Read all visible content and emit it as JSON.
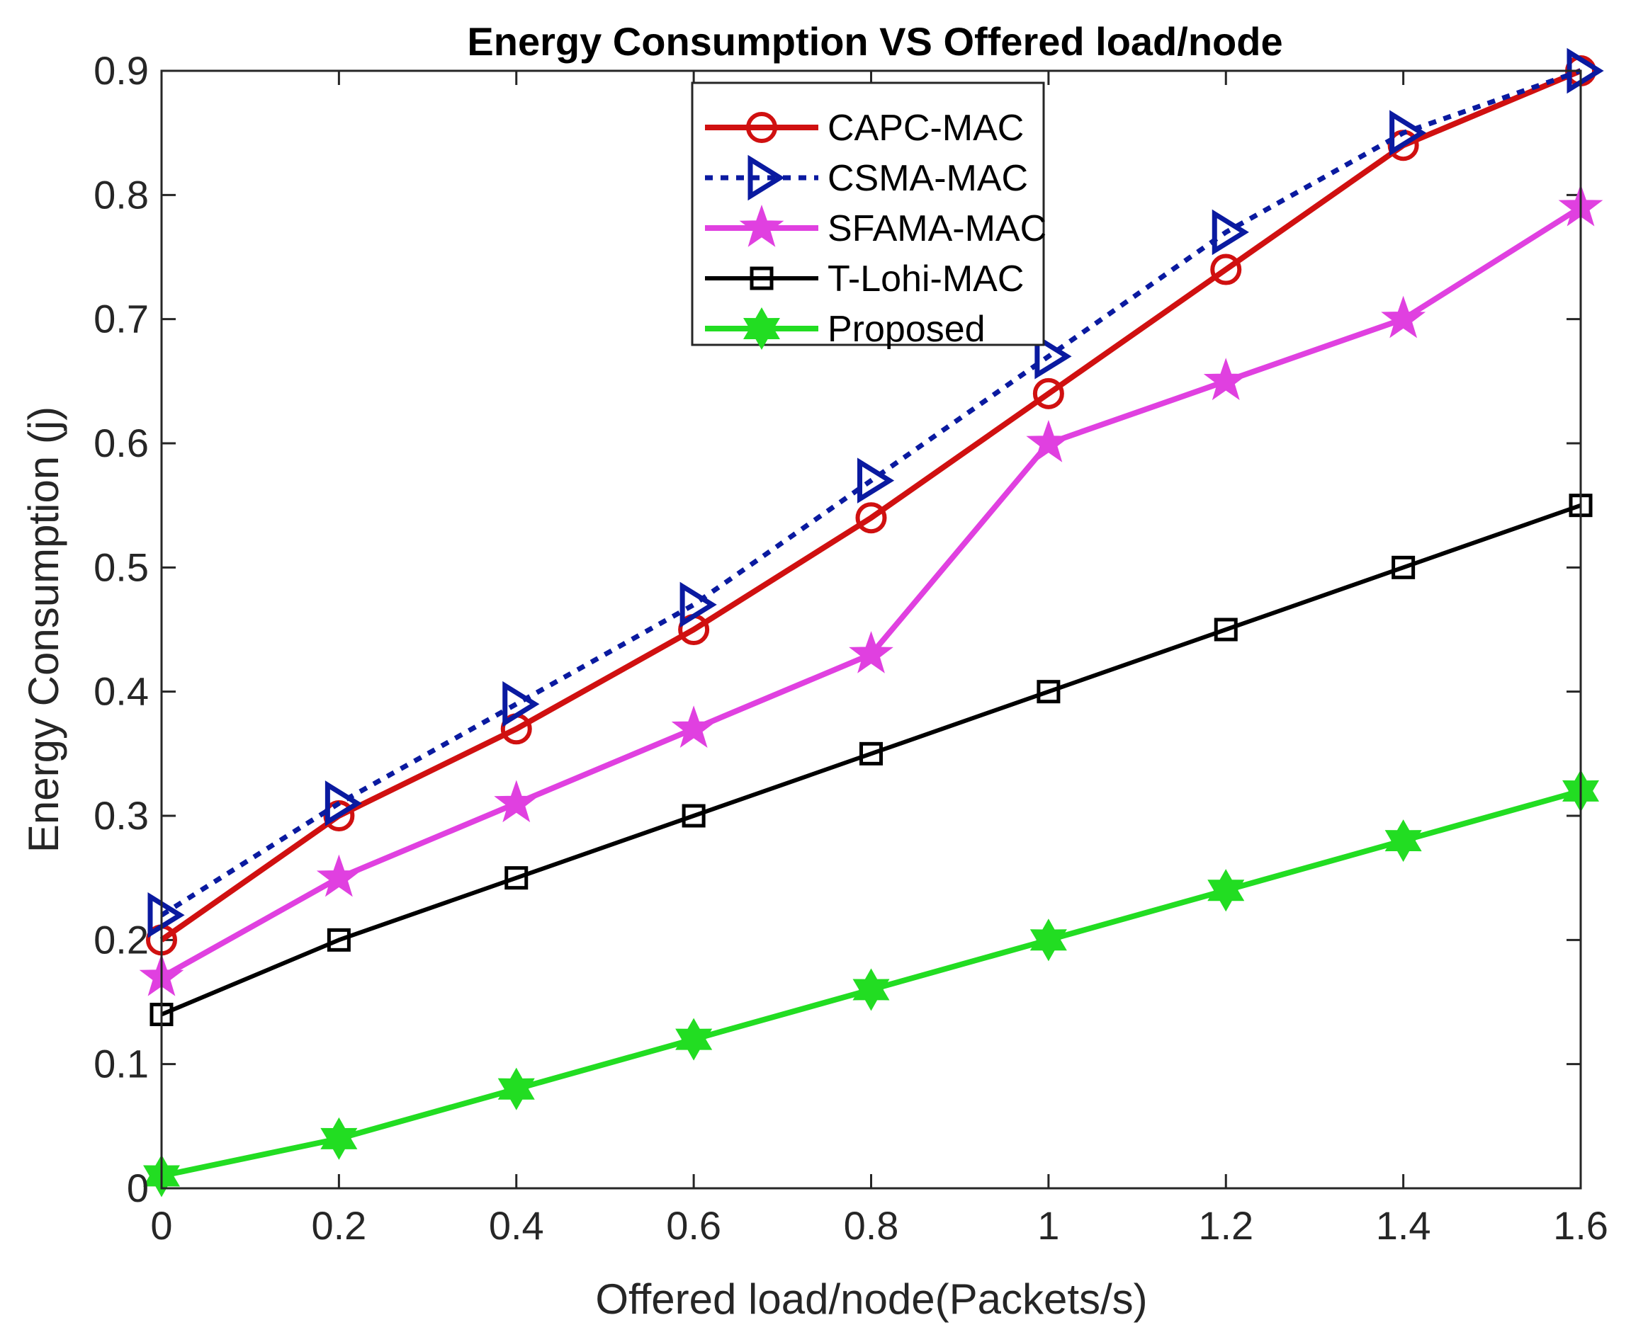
{
  "chart_data": {
    "type": "line",
    "title": "Energy Consumption VS Offered load/node",
    "xlabel": "Offered load/node(Packets/s)",
    "ylabel": "Energy Consumption (j)",
    "xlim": [
      0,
      1.6
    ],
    "ylim": [
      0,
      0.9
    ],
    "xticks": [
      "0",
      "0.2",
      "0.4",
      "0.6",
      "0.8",
      "1",
      "1.2",
      "1.4",
      "1.6"
    ],
    "yticks": [
      "0",
      "0.1",
      "0.2",
      "0.3",
      "0.4",
      "0.5",
      "0.6",
      "0.7",
      "0.8",
      "0.9"
    ],
    "legend_position": "top-center",
    "x": [
      0,
      0.2,
      0.4,
      0.6,
      0.8,
      1.0,
      1.2,
      1.4,
      1.6
    ],
    "series": [
      {
        "name": "CAPC-MAC",
        "color": "#d01010",
        "marker": "circle",
        "style": "solid",
        "values": [
          0.2,
          0.3,
          0.37,
          0.45,
          0.54,
          0.64,
          0.74,
          0.84,
          0.9
        ]
      },
      {
        "name": "CSMA-MAC",
        "color": "#0a1aa0",
        "marker": "triangle-right",
        "style": "dotted",
        "values": [
          0.22,
          0.31,
          0.39,
          0.47,
          0.57,
          0.67,
          0.77,
          0.85,
          0.9
        ]
      },
      {
        "name": "SFAMA-MAC",
        "color": "#e040e0",
        "marker": "star",
        "style": "solid",
        "values": [
          0.17,
          0.25,
          0.31,
          0.37,
          0.43,
          0.6,
          0.65,
          0.7,
          0.79
        ]
      },
      {
        "name": "T-Lohi-MAC",
        "color": "#000000",
        "marker": "square",
        "style": "solid",
        "values": [
          0.14,
          0.2,
          0.25,
          0.3,
          0.35,
          0.4,
          0.45,
          0.5,
          0.55
        ]
      },
      {
        "name": "Proposed",
        "color": "#22dd22",
        "marker": "hexagram",
        "style": "solid",
        "values": [
          0.01,
          0.04,
          0.08,
          0.12,
          0.16,
          0.2,
          0.24,
          0.28,
          0.32
        ]
      }
    ]
  }
}
